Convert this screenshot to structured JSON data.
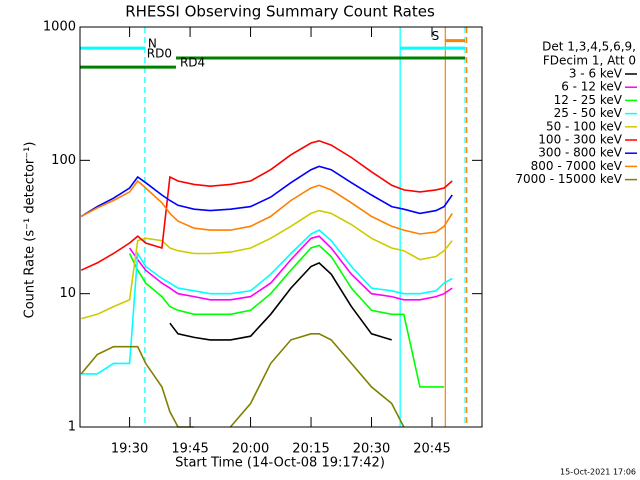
{
  "chart_data": {
    "type": "line",
    "title": "RHESSI Observing Summary Count Rates",
    "x_label": "Start Time (14-Oct-08 19:17:42)",
    "y_label": "Count Rate (s⁻¹ detector⁻¹)",
    "legend_title": [
      "Det 1,3,4,5,6,9,",
      "FDecim 1, Att 0"
    ],
    "footer": "15-Oct-2021 17:06",
    "y_scale": "log",
    "xlim": [
      1157.7,
      1257.4
    ],
    "ylim": [
      1,
      1000
    ],
    "xticks": [
      {
        "value": 1170,
        "label": "19:30"
      },
      {
        "value": 1185,
        "label": "19:45"
      },
      {
        "value": 1200,
        "label": "20:00"
      },
      {
        "value": 1215,
        "label": "20:15"
      },
      {
        "value": 1230,
        "label": "20:30"
      },
      {
        "value": 1245,
        "label": "20:45"
      }
    ],
    "yticks": [
      1,
      10,
      100,
      1000
    ],
    "x": [
      1158,
      1162,
      1166,
      1170,
      1172,
      1174,
      1178,
      1180,
      1182,
      1186,
      1190,
      1195,
      1200,
      1205,
      1210,
      1215,
      1217,
      1220,
      1225,
      1230,
      1235,
      1238,
      1242,
      1246,
      1248,
      1250
    ],
    "series": [
      {
        "name": "3 - 6 keV",
        "color": "#000000",
        "values": [
          null,
          null,
          null,
          null,
          null,
          null,
          null,
          6,
          5,
          4.7,
          4.5,
          4.5,
          4.8,
          7,
          11,
          16,
          17,
          14,
          8,
          5,
          4.5,
          null,
          null,
          null,
          null,
          null
        ]
      },
      {
        "name": "6 - 12 keV",
        "color": "#ff00ff",
        "values": [
          null,
          null,
          null,
          22,
          18,
          15,
          12,
          11,
          10,
          9.5,
          9,
          9,
          9.5,
          12,
          18,
          26,
          27,
          22,
          14,
          10,
          9.5,
          9,
          9,
          9.5,
          10,
          11
        ]
      },
      {
        "name": "12 - 25 keV",
        "color": "#00ff00",
        "values": [
          null,
          null,
          null,
          20,
          15,
          12,
          9.5,
          8,
          7.5,
          7,
          7,
          7,
          7.5,
          10,
          15,
          22,
          23,
          19,
          11,
          7.5,
          7,
          7,
          2,
          2,
          2,
          null
        ]
      },
      {
        "name": "25 - 50 keV",
        "color": "#00ffff",
        "values": [
          2.5,
          2.5,
          3,
          3,
          20,
          16,
          13,
          12,
          11,
          10.5,
          10,
          10,
          10.5,
          14,
          20,
          28,
          30,
          25,
          16,
          11,
          10.5,
          10,
          10,
          10.5,
          12,
          13
        ]
      },
      {
        "name": "50 - 100 keV",
        "color": "#cccc00",
        "values": [
          6.5,
          7,
          8,
          9,
          25,
          26,
          25,
          22,
          21,
          20,
          20,
          20.5,
          22,
          26,
          32,
          40,
          42,
          40,
          33,
          26,
          22,
          21,
          18,
          19,
          21,
          25
        ]
      },
      {
        "name": "100 - 300 keV",
        "color": "#ff0000",
        "values": [
          15,
          17,
          20,
          24,
          27,
          24,
          22,
          75,
          70,
          66,
          64,
          66,
          70,
          85,
          110,
          135,
          140,
          130,
          105,
          82,
          65,
          60,
          58,
          60,
          62,
          70
        ]
      },
      {
        "name": "300 - 800 keV",
        "color": "#0000ff",
        "values": [
          38,
          45,
          52,
          62,
          75,
          68,
          55,
          50,
          46,
          43,
          42,
          43,
          45,
          53,
          68,
          85,
          90,
          85,
          68,
          55,
          45,
          43,
          40,
          42,
          45,
          55
        ]
      },
      {
        "name": "800 - 7000 keV",
        "color": "#ff8000",
        "values": [
          38,
          44,
          50,
          58,
          70,
          62,
          48,
          40,
          35,
          31,
          30,
          30,
          32,
          38,
          50,
          62,
          65,
          60,
          48,
          38,
          32,
          30,
          28,
          29,
          32,
          40
        ]
      },
      {
        "name": "7000 - 15000 keV",
        "color": "#808000",
        "values": [
          2.5,
          3.5,
          4,
          4,
          4,
          3,
          2,
          1.3,
          1,
          1,
          null,
          1,
          1.5,
          3,
          4.5,
          5,
          5,
          4.5,
          3,
          2,
          1.5,
          1,
          null,
          null,
          null,
          null
        ]
      }
    ],
    "annotations": [
      {
        "text": "N",
        "color": "#00ffff",
        "x": [
          1157.7,
          1173.8
        ],
        "y": 695
      },
      {
        "color": "#00ffff",
        "x": [
          1237.1,
          1253.2
        ],
        "y": 695
      },
      {
        "text": "S",
        "color": "#ff8000",
        "x": [
          1248.3,
          1253.2
        ],
        "y": 790
      },
      {
        "text": "RD0",
        "color": "#008000",
        "x": [
          1181.5,
          1253.2
        ],
        "y": 585
      },
      {
        "text": "RD4",
        "color": "#008000",
        "x": [
          1157.7,
          1181.5
        ],
        "y": 500
      }
    ],
    "vlines": [
      {
        "x": 1173.8,
        "color": "#00ffff",
        "dashed": true
      },
      {
        "x": 1237.1,
        "color": "#00ffff",
        "dashed": false
      },
      {
        "x": 1253.2,
        "color": "#00ffff",
        "dashed": true
      },
      {
        "x": 1248.3,
        "color": "#ff8000",
        "dashed": false
      },
      {
        "x": 1253.6,
        "color": "#ff8000",
        "dashed": true
      }
    ]
  }
}
